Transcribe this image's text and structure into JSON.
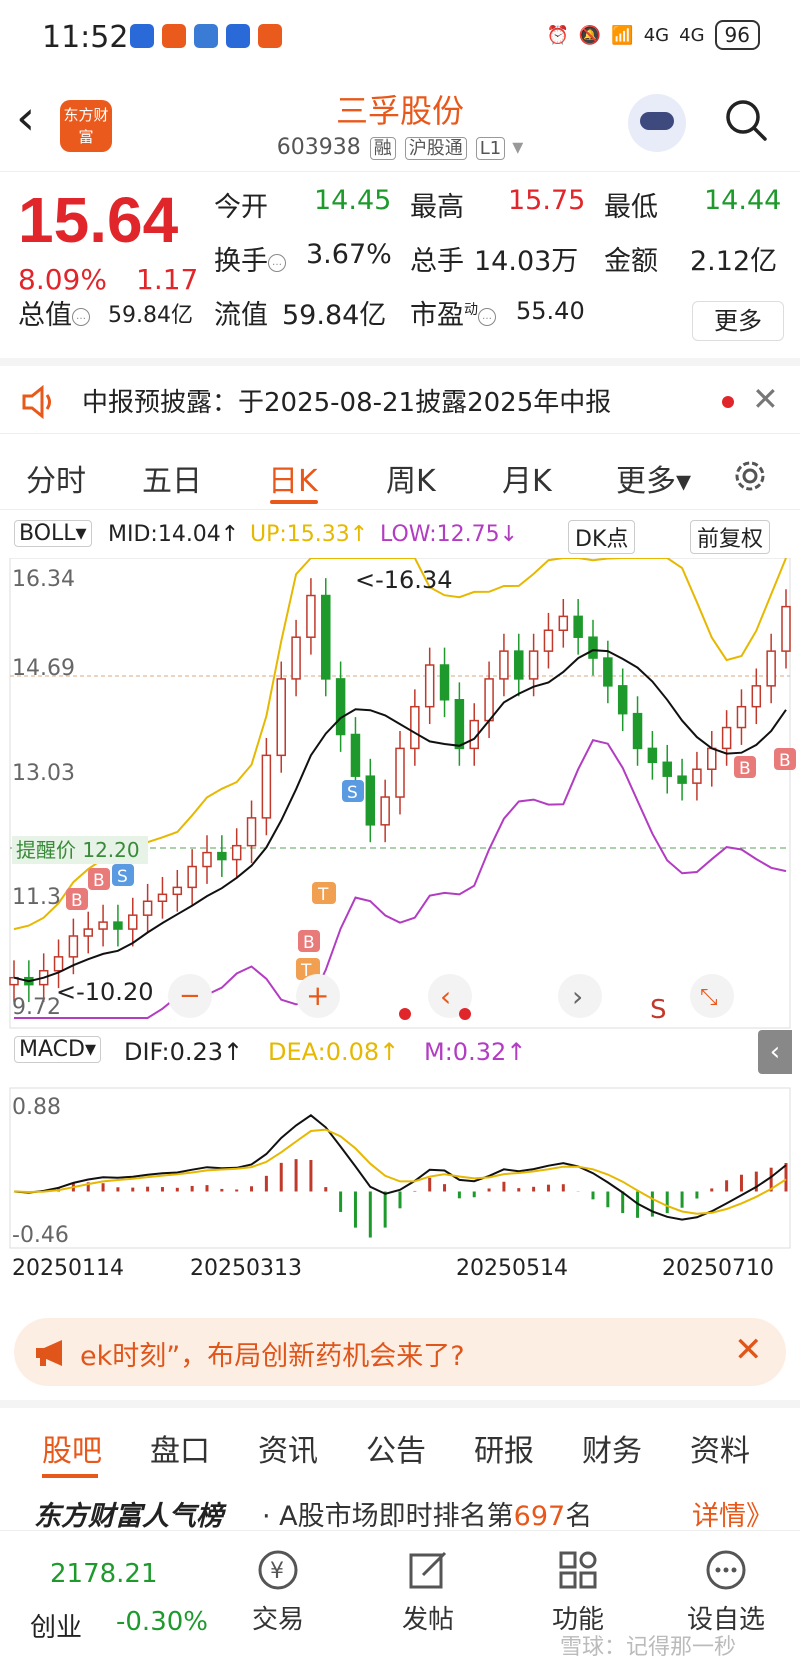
{
  "status": {
    "time": "11:52",
    "battery": "96",
    "network1": "4G",
    "network2": "4G"
  },
  "header": {
    "logo_text": "东方财富",
    "stock_name": "三孚股份",
    "stock_code": "603938",
    "tag_rong": "融",
    "tag_hgt": "沪股通",
    "tag_level": "L1"
  },
  "quote": {
    "price": "15.64",
    "change_pct": "8.09%",
    "change_amt": "1.17",
    "open_label": "今开",
    "open": "14.45",
    "high_label": "最高",
    "high": "15.75",
    "low_label": "最低",
    "low": "14.44",
    "turnover_label": "换手",
    "turnover": "3.67%",
    "volume_label": "总手",
    "volume": "14.03万",
    "amount_label": "金额",
    "amount": "2.12亿",
    "mktcap_label": "总值",
    "mktcap": "59.84亿",
    "float_label": "流值",
    "float": "59.84亿",
    "pe_label": "市盈",
    "pe_sup": "动",
    "pe": "55.40",
    "more_label": "更多"
  },
  "notice": {
    "text": "中报预披露：于2025-08-21披露2025年中报"
  },
  "chart_tabs": {
    "items": [
      "分时",
      "五日",
      "日K",
      "周K",
      "月K",
      "更多▾"
    ],
    "active": "日K"
  },
  "boll": {
    "selector": "BOLL▾",
    "mid": "MID:14.04↑",
    "up": "UP:15.33↑",
    "low": "LOW:12.75↓",
    "dk_label": "DK点",
    "fq_label": "前复权",
    "remind_label": "提醒价 12.20",
    "high_marker": "<-16.34",
    "low_marker": "<-10.20",
    "y_labels": [
      "16.34",
      "14.69",
      "13.03",
      "11.3",
      "9.72"
    ]
  },
  "macd": {
    "selector": "MACD▾",
    "dif": "DIF:0.23↑",
    "dea": "DEA:0.08↑",
    "m": "M:0.32↑",
    "y_top": "0.88",
    "y_bottom": "-0.46"
  },
  "dates": [
    "20250114",
    "20250313",
    "20250514",
    "20250710"
  ],
  "ad": {
    "text": "ek时刻”，布局创新药机会来了?"
  },
  "bottom_tabs": {
    "items": [
      "股吧",
      "盘口",
      "资讯",
      "公告",
      "研报",
      "财务",
      "资料"
    ],
    "active": "股吧"
  },
  "rank": {
    "brand": "东方财富人气榜",
    "text_prefix": "· A股市场即时排名第",
    "rank_num": "697",
    "text_suffix": "名",
    "detail": "详情》"
  },
  "dock": {
    "index_value": "2178.21",
    "index_name": "创业",
    "index_change": "-0.30%",
    "items": [
      "交易",
      "发帖",
      "功能",
      "设自选"
    ],
    "watermark": "雪球：记得那一秒"
  },
  "colors": {
    "up": "#e0262a",
    "down": "#1e9a2d",
    "accent": "#e8581a",
    "boll_up": "#e6b800",
    "boll_low": "#b23cc2"
  },
  "chart_data": {
    "type": "candlestick",
    "y_range": [
      9.72,
      16.34
    ],
    "close_series": [
      10.3,
      10.2,
      10.4,
      10.6,
      10.9,
      11.0,
      11.1,
      11.0,
      11.2,
      11.4,
      11.5,
      11.6,
      11.9,
      12.1,
      12.0,
      12.2,
      12.6,
      13.5,
      14.6,
      15.2,
      15.8,
      14.6,
      13.8,
      13.2,
      12.5,
      12.9,
      13.6,
      14.2,
      14.8,
      14.3,
      13.6,
      14.0,
      14.6,
      15.0,
      14.6,
      15.0,
      15.3,
      15.5,
      15.2,
      14.9,
      14.5,
      14.1,
      13.6,
      13.4,
      13.2,
      13.1,
      13.3,
      13.6,
      13.9,
      14.2,
      14.5,
      15.0,
      15.64
    ],
    "macd_range": [
      -0.46,
      0.88
    ]
  }
}
